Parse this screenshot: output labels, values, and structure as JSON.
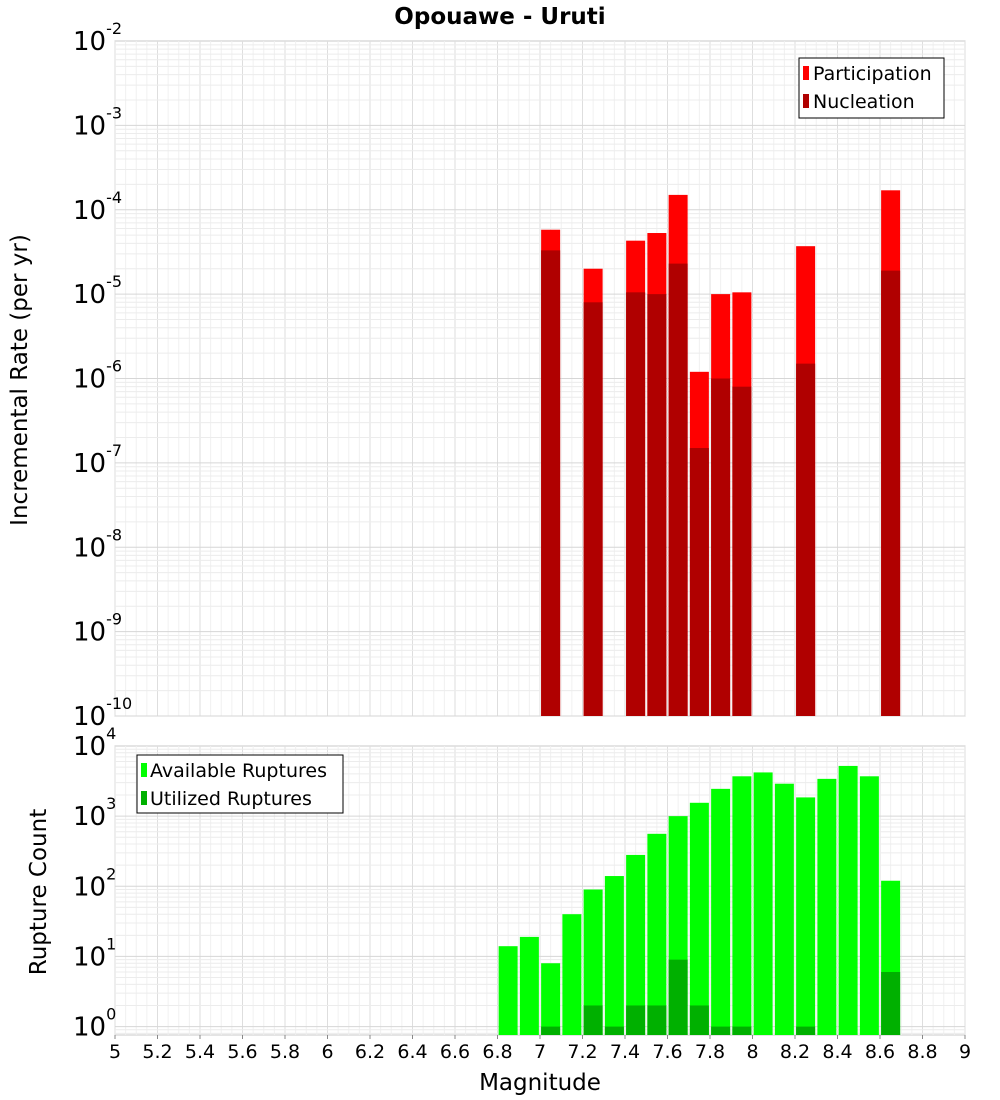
{
  "chart_data": [
    {
      "type": "bar",
      "scale": "log",
      "title": "Opouawe - Uruti",
      "xlabel": "",
      "ylabel": "Incremental Rate (per yr)",
      "xlim": [
        5,
        9
      ],
      "ylim_exponents": [
        -10,
        -2
      ],
      "y_tick_exponents": [
        -10,
        -9,
        -8,
        -7,
        -6,
        -5,
        -4,
        -3,
        -2
      ],
      "legend": {
        "position": "top-right",
        "entries": [
          "Participation",
          "Nucleation"
        ]
      },
      "colors": {
        "Participation": "#ff0000",
        "Nucleation": "#b00000"
      },
      "series": [
        {
          "name": "Participation",
          "x": [
            7.05,
            7.25,
            7.45,
            7.55,
            7.65,
            7.75,
            7.85,
            7.95,
            8.25,
            8.65
          ],
          "values": [
            5.8e-05,
            2e-05,
            4.3e-05,
            5.3e-05,
            0.00015,
            1.2e-06,
            1e-05,
            1.05e-05,
            3.7e-05,
            0.00017
          ]
        },
        {
          "name": "Nucleation",
          "x": [
            7.05,
            7.25,
            7.45,
            7.55,
            7.65,
            7.75,
            7.85,
            7.95,
            8.25,
            8.65
          ],
          "values": [
            3.3e-05,
            8e-06,
            1.05e-05,
            1e-05,
            2.3e-05,
            1.5e-07,
            1e-06,
            8e-07,
            1.5e-06,
            1.9e-05
          ]
        }
      ]
    },
    {
      "type": "bar",
      "scale": "log",
      "title": "",
      "xlabel": "Magnitude",
      "ylabel": "Rupture Count",
      "xlim": [
        5,
        9
      ],
      "ylim_exponents": [
        -0.12,
        4
      ],
      "y_tick_exponents": [
        0,
        1,
        2,
        3,
        4
      ],
      "x_ticks": [
        "5",
        "5.2",
        "5.4",
        "5.6",
        "5.8",
        "6",
        "6.2",
        "6.4",
        "6.6",
        "6.8",
        "7",
        "7.2",
        "7.4",
        "7.6",
        "7.8",
        "8",
        "8.2",
        "8.4",
        "8.6",
        "8.8",
        "9"
      ],
      "legend": {
        "position": "top-left",
        "entries": [
          "Available Ruptures",
          "Utilized Ruptures"
        ]
      },
      "colors": {
        "Available Ruptures": "#00ff00",
        "Utilized Ruptures": "#00b000"
      },
      "series": [
        {
          "name": "Available Ruptures",
          "x": [
            6.85,
            6.95,
            7.05,
            7.15,
            7.25,
            7.35,
            7.45,
            7.55,
            7.65,
            7.75,
            7.85,
            7.95,
            8.05,
            8.15,
            8.25,
            8.35,
            8.45,
            8.55,
            8.65
          ],
          "values": [
            14,
            19,
            8,
            40,
            90,
            140,
            280,
            560,
            1000,
            1550,
            2450,
            3700,
            4200,
            2900,
            1850,
            3400,
            5200,
            3700,
            120
          ]
        },
        {
          "name": "Utilized Ruptures",
          "x": [
            7.05,
            7.25,
            7.35,
            7.45,
            7.55,
            7.65,
            7.75,
            7.85,
            7.95,
            8.25,
            8.65
          ],
          "values": [
            1,
            2,
            1,
            2,
            2,
            9,
            2,
            1,
            1,
            1,
            6
          ]
        }
      ]
    }
  ]
}
